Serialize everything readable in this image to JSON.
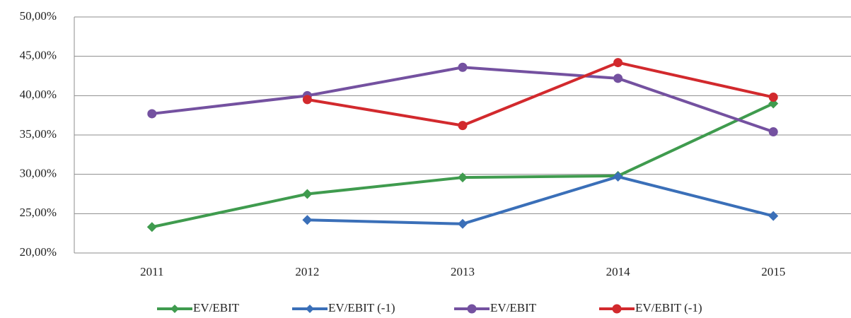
{
  "chart_data": {
    "type": "line",
    "categories": [
      "2011",
      "2012",
      "2013",
      "2014",
      "2015"
    ],
    "series": [
      {
        "name": "EV/EBIT",
        "color": "#3f9b4e",
        "marker": "diamond",
        "values": [
          23.3,
          27.5,
          29.6,
          29.8,
          39.0
        ]
      },
      {
        "name": "EV/EBIT (-1)",
        "color": "#3a6fb8",
        "marker": "diamond",
        "values": [
          null,
          24.2,
          23.7,
          29.7,
          24.7
        ]
      },
      {
        "name": "EV/EBIT",
        "color": "#7451a0",
        "marker": "circle",
        "values": [
          37.7,
          40.0,
          43.6,
          42.2,
          35.4
        ]
      },
      {
        "name": "EV/EBIT (-1)",
        "color": "#d2292d",
        "marker": "circle",
        "values": [
          null,
          39.5,
          36.2,
          44.2,
          39.8
        ]
      }
    ],
    "ylim": [
      20,
      50
    ],
    "yticks": [
      {
        "value": 20,
        "label": "20,00%"
      },
      {
        "value": 25,
        "label": "25,00%"
      },
      {
        "value": 30,
        "label": "30,00%"
      },
      {
        "value": 35,
        "label": "35,00%"
      },
      {
        "value": 40,
        "label": "40,00%"
      },
      {
        "value": 45,
        "label": "45,00%"
      },
      {
        "value": 50,
        "label": "50,00%"
      }
    ],
    "grid": true,
    "legend": "bottom"
  }
}
